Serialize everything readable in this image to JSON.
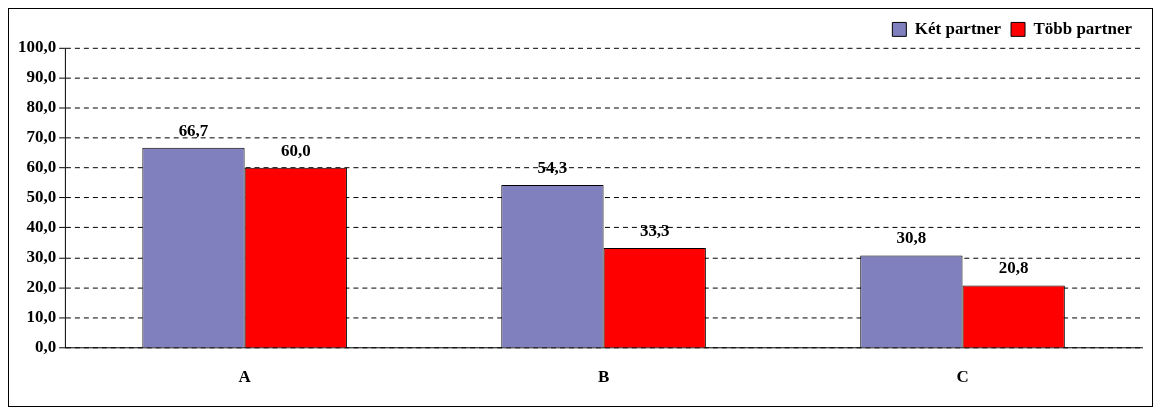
{
  "chart_data": {
    "type": "bar",
    "categories": [
      "A",
      "B",
      "C"
    ],
    "series": [
      {
        "name": "Két partner",
        "color": "#8080bf",
        "values": [
          66.7,
          54.3,
          30.8
        ],
        "value_labels": [
          "66,7",
          "54,3",
          "30,8"
        ]
      },
      {
        "name": "Több partner",
        "color": "#ff0000",
        "values": [
          60.0,
          33.3,
          20.8
        ],
        "value_labels": [
          "60,0",
          "33,3",
          "20,8"
        ]
      }
    ],
    "ylim": [
      0,
      100
    ],
    "yticks": [
      {
        "value": 0,
        "label": "0,0"
      },
      {
        "value": 10,
        "label": "10,0"
      },
      {
        "value": 20,
        "label": "20,0"
      },
      {
        "value": 30,
        "label": "30,0"
      },
      {
        "value": 40,
        "label": "40,0"
      },
      {
        "value": 50,
        "label": "50,0"
      },
      {
        "value": 60,
        "label": "60,0"
      },
      {
        "value": 70,
        "label": "70,0"
      },
      {
        "value": 80,
        "label": "80,0"
      },
      {
        "value": 90,
        "label": "90,0"
      },
      {
        "value": 100,
        "label": "100,0"
      }
    ],
    "grid": "y",
    "legend": "top right"
  }
}
